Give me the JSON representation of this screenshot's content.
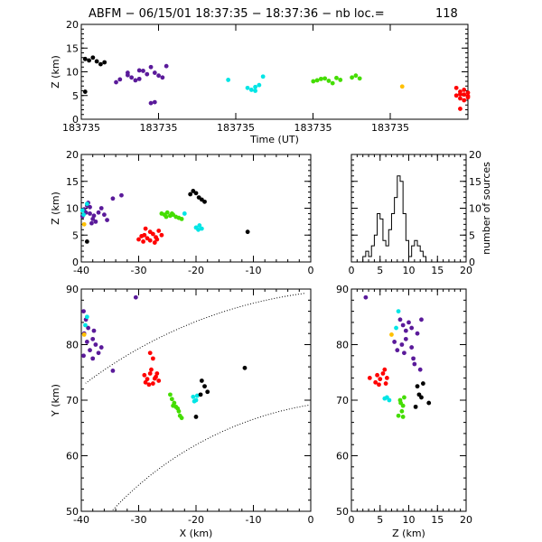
{
  "title": {
    "label": "ABFM − 06/15/01 18:37:35 − 18:37:36 − nb loc.=",
    "count": "118"
  },
  "chart_data": [
    {
      "id": "time-height",
      "type": "scatter",
      "xlabel": "Time (UT)",
      "ylabel": "Z (km)",
      "xticks": [
        "183735",
        "183735",
        "183735",
        "183735",
        "183735"
      ],
      "xlim": [
        0,
        1
      ],
      "ylim": [
        0,
        20
      ],
      "yticks": [
        0,
        5,
        10,
        15,
        20
      ],
      "series": [
        {
          "color": "#000000",
          "points": [
            [
              0.01,
              12.7
            ],
            [
              0.02,
              12.4
            ],
            [
              0.03,
              13.0
            ],
            [
              0.04,
              12.2
            ],
            [
              0.05,
              11.6
            ],
            [
              0.06,
              12.0
            ],
            [
              0.01,
              5.8
            ]
          ]
        },
        {
          "color": "#5a1a9a",
          "points": [
            [
              0.09,
              7.8
            ],
            [
              0.1,
              8.4
            ],
            [
              0.12,
              9.8
            ],
            [
              0.13,
              8.8
            ],
            [
              0.14,
              8.2
            ],
            [
              0.15,
              8.5
            ],
            [
              0.16,
              10.2
            ],
            [
              0.17,
              9.5
            ],
            [
              0.18,
              11.0
            ],
            [
              0.19,
              9.8
            ],
            [
              0.2,
              9.2
            ],
            [
              0.21,
              8.8
            ],
            [
              0.22,
              11.2
            ],
            [
              0.18,
              3.4
            ],
            [
              0.19,
              3.6
            ],
            [
              0.12,
              9.3
            ],
            [
              0.15,
              10.3
            ]
          ]
        },
        {
          "color": "#00e5e5",
          "points": [
            [
              0.38,
              8.3
            ],
            [
              0.43,
              6.6
            ],
            [
              0.44,
              6.2
            ],
            [
              0.45,
              6.8
            ],
            [
              0.45,
              6.0
            ],
            [
              0.46,
              7.2
            ],
            [
              0.47,
              9.0
            ]
          ]
        },
        {
          "color": "#44dd00",
          "points": [
            [
              0.6,
              8.0
            ],
            [
              0.61,
              8.2
            ],
            [
              0.62,
              8.5
            ],
            [
              0.63,
              8.6
            ],
            [
              0.64,
              8.1
            ],
            [
              0.65,
              7.6
            ],
            [
              0.66,
              8.7
            ],
            [
              0.67,
              8.3
            ],
            [
              0.7,
              8.8
            ],
            [
              0.71,
              9.2
            ],
            [
              0.72,
              8.6
            ]
          ]
        },
        {
          "color": "#ffc000",
          "points": [
            [
              0.83,
              6.9
            ]
          ]
        },
        {
          "color": "#ff0000",
          "points": [
            [
              0.97,
              5.0
            ],
            [
              0.98,
              5.8
            ],
            [
              0.98,
              4.4
            ],
            [
              0.99,
              5.2
            ],
            [
              0.99,
              4.0
            ],
            [
              1.0,
              5.6
            ],
            [
              1.0,
              4.6
            ],
            [
              0.98,
              2.2
            ],
            [
              0.97,
              6.6
            ],
            [
              0.99,
              6.2
            ],
            [
              1.0,
              4.9
            ],
            [
              0.98,
              5.3
            ]
          ]
        }
      ]
    },
    {
      "id": "xz",
      "type": "scatter",
      "xlabel": "",
      "ylabel": "Z (km)",
      "xlim": [
        -40,
        0
      ],
      "ylim": [
        0,
        20
      ],
      "xticks": [
        -40,
        -30,
        -20,
        -10,
        0
      ],
      "yticks": [
        0,
        5,
        10,
        15,
        20
      ],
      "series": [
        {
          "color": "#5a1a9a",
          "points": [
            [
              -39.5,
              9.8
            ],
            [
              -39.0,
              10.5
            ],
            [
              -38.5,
              9.0
            ],
            [
              -38.0,
              8.0
            ],
            [
              -37.5,
              7.5
            ],
            [
              -37.0,
              9.2
            ],
            [
              -36.5,
              10.0
            ],
            [
              -36.0,
              8.8
            ],
            [
              -35.5,
              7.8
            ],
            [
              -39.8,
              8.5
            ],
            [
              -38.8,
              11.0
            ],
            [
              -38.2,
              7.2
            ],
            [
              -37.8,
              8.6
            ],
            [
              -34.5,
              11.8
            ],
            [
              -33.0,
              12.4
            ],
            [
              -38.5,
              10.2
            ],
            [
              -39.2,
              9.2
            ]
          ]
        },
        {
          "color": "#00e5e5",
          "points": [
            [
              -39.6,
              8.8
            ],
            [
              -39.8,
              9.6
            ],
            [
              -39.0,
              10.8
            ],
            [
              -22.0,
              9.0
            ],
            [
              -20.0,
              6.4
            ],
            [
              -19.6,
              6.0
            ],
            [
              -19.4,
              6.8
            ],
            [
              -19.0,
              6.2
            ]
          ]
        },
        {
          "color": "#44dd00",
          "points": [
            [
              -26.0,
              9.0
            ],
            [
              -25.5,
              8.8
            ],
            [
              -25.0,
              9.2
            ],
            [
              -24.5,
              8.6
            ],
            [
              -24.0,
              8.8
            ],
            [
              -23.5,
              8.4
            ],
            [
              -23.0,
              8.2
            ],
            [
              -22.5,
              8.0
            ],
            [
              -25.2,
              8.4
            ],
            [
              -24.2,
              9.0
            ]
          ]
        },
        {
          "color": "#ff0000",
          "points": [
            [
              -30.0,
              4.2
            ],
            [
              -29.5,
              4.8
            ],
            [
              -29.0,
              5.0
            ],
            [
              -28.5,
              4.4
            ],
            [
              -28.0,
              5.6
            ],
            [
              -27.5,
              5.2
            ],
            [
              -27.0,
              4.6
            ],
            [
              -26.5,
              5.8
            ],
            [
              -26.0,
              5.0
            ],
            [
              -28.8,
              6.2
            ],
            [
              -27.2,
              3.6
            ],
            [
              -29.2,
              3.8
            ],
            [
              -28.0,
              4.0
            ],
            [
              -26.8,
              4.2
            ]
          ]
        },
        {
          "color": "#ffc000",
          "points": [
            [
              -39.5,
              7.0
            ]
          ]
        },
        {
          "color": "#000000",
          "points": [
            [
              -39.0,
              3.8
            ],
            [
              -21.0,
              12.6
            ],
            [
              -20.0,
              12.8
            ],
            [
              -19.5,
              12.0
            ],
            [
              -19.0,
              11.6
            ],
            [
              -18.5,
              11.2
            ],
            [
              -20.5,
              13.2
            ],
            [
              -11.0,
              5.6
            ]
          ]
        }
      ]
    },
    {
      "id": "histogram",
      "type": "bar",
      "ylabel": "number of sources",
      "xlim": [
        0,
        20
      ],
      "ylim": [
        0,
        20
      ],
      "xticks": [
        0,
        5,
        10,
        15,
        20
      ],
      "yticks": [
        0,
        5,
        10,
        15,
        20
      ],
      "bin_width": 0.5,
      "bin_start": 0,
      "values": [
        0,
        0,
        0,
        0,
        1,
        2,
        1,
        3,
        5,
        9,
        8,
        4,
        3,
        6,
        9,
        12,
        16,
        15,
        9,
        4,
        1,
        3,
        4,
        3,
        2,
        1,
        0,
        0,
        0,
        0,
        0,
        0,
        0,
        0,
        0,
        0,
        0,
        0,
        0,
        0
      ]
    },
    {
      "id": "xy",
      "type": "scatter",
      "xlabel": "X (km)",
      "ylabel": "Y (km)",
      "xlim": [
        -40,
        0
      ],
      "ylim": [
        50,
        90
      ],
      "xticks": [
        -40,
        -30,
        -20,
        -10,
        0
      ],
      "yticks": [
        50,
        60,
        70,
        80,
        90
      ],
      "series": [
        {
          "color": "#5a1a9a",
          "points": [
            [
              -39.5,
              82.0
            ],
            [
              -39.0,
              80.5
            ],
            [
              -38.5,
              79.0
            ],
            [
              -38.0,
              81.0
            ],
            [
              -37.5,
              80.0
            ],
            [
              -37.0,
              78.5
            ],
            [
              -36.5,
              79.5
            ],
            [
              -38.8,
              83.0
            ],
            [
              -39.2,
              84.5
            ],
            [
              -39.6,
              86.0
            ],
            [
              -38.0,
              77.5
            ],
            [
              -34.5,
              75.3
            ],
            [
              -30.5,
              88.5
            ],
            [
              -39.6,
              78.0
            ],
            [
              -37.8,
              82.5
            ]
          ]
        },
        {
          "color": "#00e5e5",
          "points": [
            [
              -39.3,
              83.5
            ],
            [
              -39.0,
              85.0
            ],
            [
              -20.5,
              70.6
            ],
            [
              -20.0,
              70.0
            ],
            [
              -19.8,
              70.8
            ],
            [
              -20.3,
              69.8
            ]
          ]
        },
        {
          "color": "#44dd00",
          "points": [
            [
              -24.5,
              71.0
            ],
            [
              -24.2,
              70.2
            ],
            [
              -23.8,
              69.5
            ],
            [
              -23.5,
              68.8
            ],
            [
              -23.0,
              68.0
            ],
            [
              -22.8,
              67.2
            ],
            [
              -22.5,
              66.8
            ],
            [
              -24.0,
              69.0
            ],
            [
              -23.2,
              68.5
            ]
          ]
        },
        {
          "color": "#ff0000",
          "points": [
            [
              -29.0,
              74.5
            ],
            [
              -28.5,
              73.8
            ],
            [
              -28.0,
              74.8
            ],
            [
              -27.5,
              73.0
            ],
            [
              -27.0,
              74.2
            ],
            [
              -26.5,
              73.5
            ],
            [
              -28.2,
              72.8
            ],
            [
              -27.8,
              75.5
            ],
            [
              -26.8,
              74.8
            ],
            [
              -28.8,
              73.2
            ],
            [
              -28.0,
              78.5
            ],
            [
              -27.5,
              77.5
            ],
            [
              -27.2,
              73.9
            ]
          ]
        },
        {
          "color": "#ffc000",
          "points": [
            [
              -39.5,
              81.8
            ]
          ]
        },
        {
          "color": "#000000",
          "points": [
            [
              -19.0,
              73.5
            ],
            [
              -18.5,
              72.5
            ],
            [
              -18.0,
              71.5
            ],
            [
              -19.2,
              71.0
            ],
            [
              -20.0,
              67.0
            ],
            [
              -11.5,
              75.8
            ]
          ]
        }
      ]
    },
    {
      "id": "zy",
      "type": "scatter",
      "xlabel": "Z (km)",
      "ylabel": "",
      "xlim": [
        0,
        20
      ],
      "ylim": [
        50,
        90
      ],
      "xticks": [
        0,
        5,
        10,
        15,
        20
      ],
      "yticks": [
        50,
        60,
        70,
        80,
        90
      ],
      "series": [
        {
          "color": "#5a1a9a",
          "points": [
            [
              2.5,
              88.5
            ],
            [
              8.5,
              84.5
            ],
            [
              9.0,
              83.5
            ],
            [
              9.5,
              82.5
            ],
            [
              10.0,
              84.0
            ],
            [
              10.5,
              83.0
            ],
            [
              9.5,
              81.0
            ],
            [
              8.8,
              80.0
            ],
            [
              10.5,
              79.5
            ],
            [
              9.2,
              78.5
            ],
            [
              10.8,
              77.5
            ],
            [
              11.0,
              76.5
            ],
            [
              12.0,
              75.5
            ],
            [
              11.5,
              82.0
            ],
            [
              7.5,
              80.5
            ],
            [
              8.0,
              79.0
            ],
            [
              12.2,
              84.5
            ]
          ]
        },
        {
          "color": "#00e5e5",
          "points": [
            [
              8.2,
              86.0
            ],
            [
              7.8,
              83.0
            ],
            [
              6.2,
              70.5
            ],
            [
              6.6,
              70.0
            ],
            [
              5.8,
              70.3
            ]
          ]
        },
        {
          "color": "#44dd00",
          "points": [
            [
              8.5,
              70.0
            ],
            [
              9.0,
              69.0
            ],
            [
              8.8,
              68.0
            ],
            [
              8.2,
              67.2
            ],
            [
              9.2,
              70.5
            ],
            [
              8.6,
              69.5
            ],
            [
              9.0,
              67.0
            ]
          ]
        },
        {
          "color": "#ff0000",
          "points": [
            [
              4.5,
              74.5
            ],
            [
              5.0,
              73.8
            ],
            [
              5.5,
              74.8
            ],
            [
              6.0,
              73.0
            ],
            [
              4.2,
              73.2
            ],
            [
              5.8,
              75.5
            ],
            [
              4.8,
              72.8
            ],
            [
              6.2,
              74.0
            ],
            [
              3.2,
              74.0
            ]
          ]
        },
        {
          "color": "#ffc000",
          "points": [
            [
              7.0,
              81.8
            ]
          ]
        },
        {
          "color": "#000000",
          "points": [
            [
              11.5,
              72.5
            ],
            [
              12.5,
              73.0
            ],
            [
              11.8,
              71.0
            ],
            [
              11.2,
              68.8
            ],
            [
              13.5,
              69.5
            ],
            [
              12.2,
              70.5
            ]
          ]
        }
      ]
    }
  ]
}
